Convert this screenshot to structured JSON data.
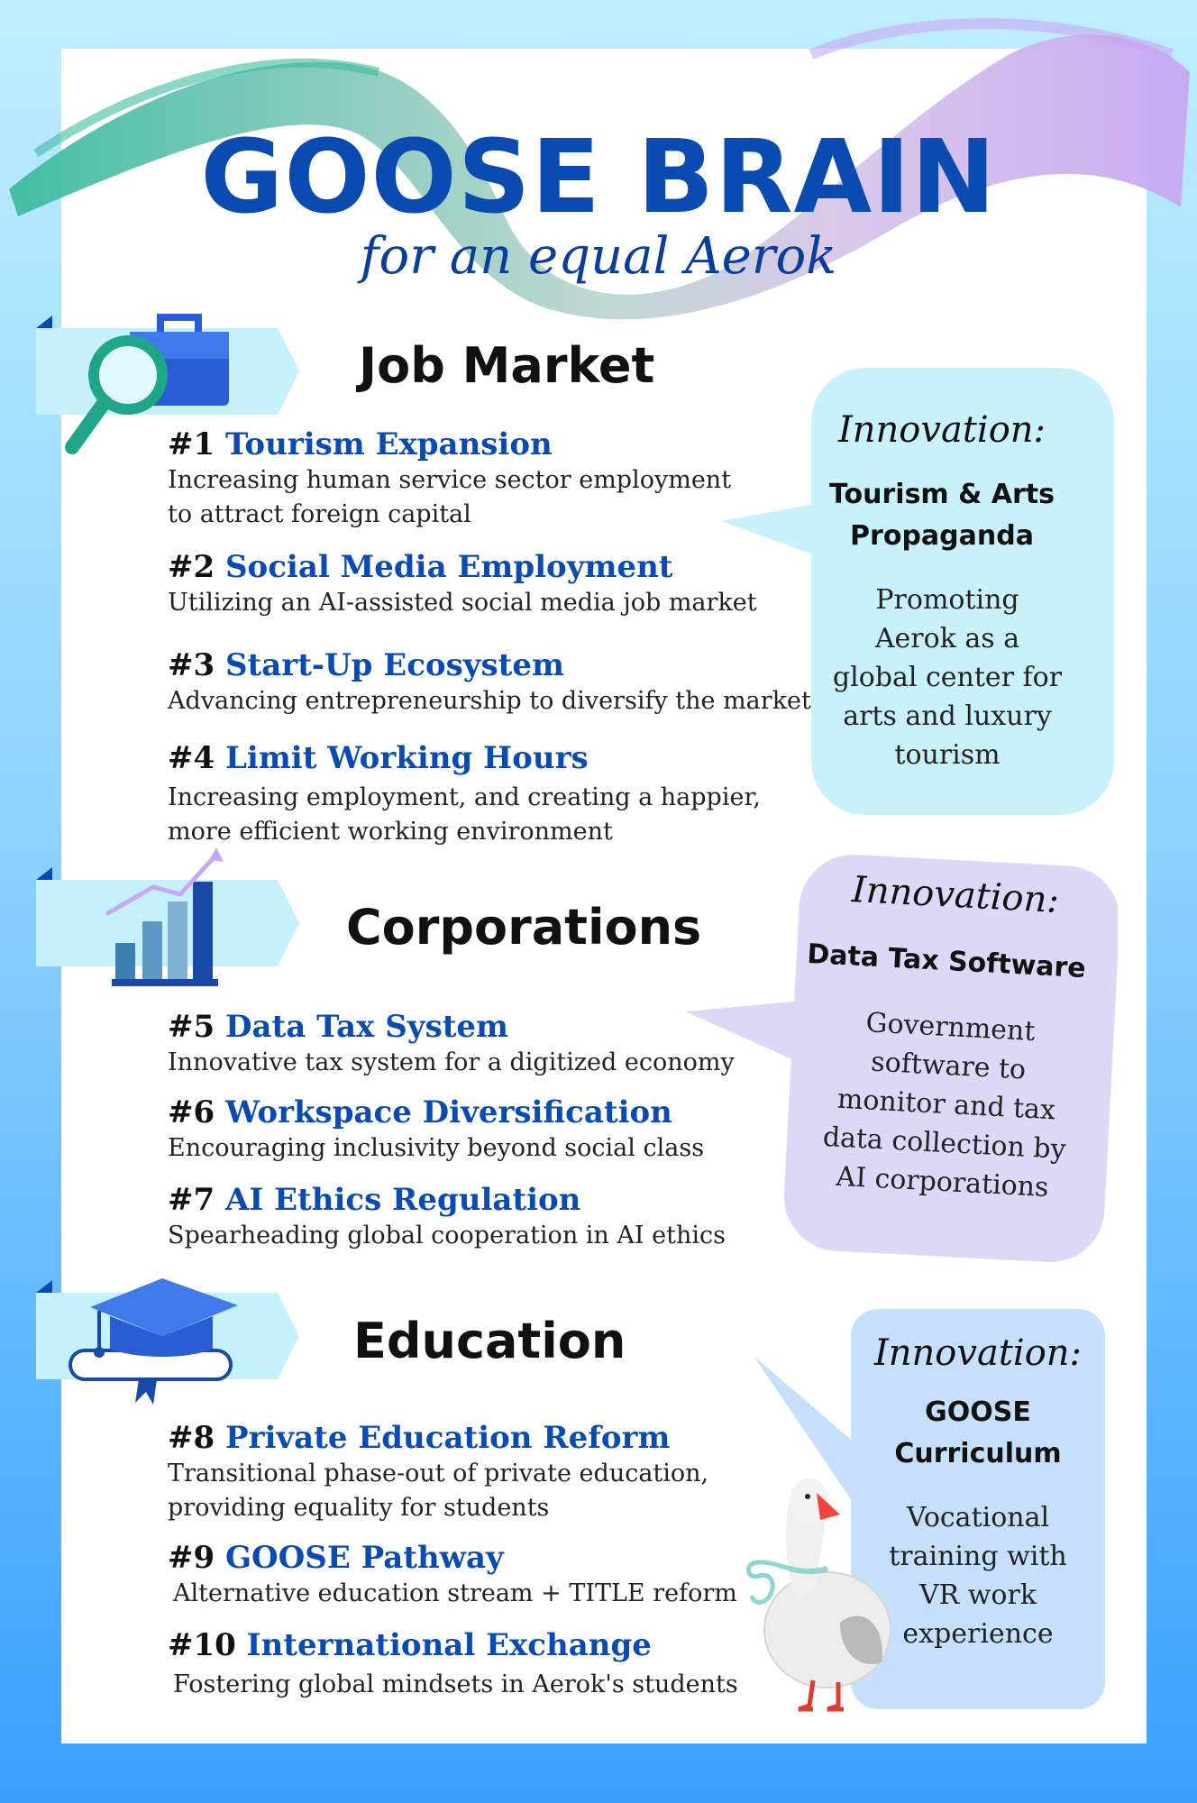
{
  "header": {
    "title": "GOOSE BRAIN",
    "subtitle": "for an equal Aerok"
  },
  "sections": [
    {
      "title": "Job Market",
      "icon": "briefcase-magnifier-icon",
      "items": [
        {
          "num": "#1",
          "name": "Tourism Expansion",
          "desc": [
            "Increasing human service sector employment",
            "to attract foreign capital"
          ]
        },
        {
          "num": "#2",
          "name": "Social Media Employment",
          "desc": [
            "Utilizing an AI-assisted social media job market"
          ]
        },
        {
          "num": "#3",
          "name": "Start-Up Ecosystem",
          "desc": [
            "Advancing entrepreneurship to diversify the market"
          ]
        },
        {
          "num": "#4",
          "name": "Limit Working Hours",
          "desc": [
            "Increasing employment, and creating a happier,",
            "more efficient working environment"
          ]
        }
      ],
      "innovation": {
        "label": "Innovation:",
        "name": [
          "Tourism & Arts",
          "Propaganda"
        ],
        "desc": [
          "Promoting",
          "Aerok as a",
          "global center for",
          "arts and luxury",
          "tourism"
        ],
        "color": "#c9f1fb"
      }
    },
    {
      "title": "Corporations",
      "icon": "bar-chart-icon",
      "items": [
        {
          "num": "#5",
          "name": "Data Tax System",
          "desc": [
            "Innovative tax system for a digitized economy"
          ]
        },
        {
          "num": "#6",
          "name": "Workspace Diversification",
          "desc": [
            "Encouraging inclusivity beyond social class"
          ]
        },
        {
          "num": "#7",
          "name": "AI Ethics Regulation",
          "desc": [
            "Spearheading global cooperation in AI ethics"
          ]
        }
      ],
      "innovation": {
        "label": "Innovation:",
        "name": [
          "Data Tax Software"
        ],
        "desc": [
          "Government",
          "software to",
          "monitor and tax",
          "data collection by",
          "AI corporations"
        ],
        "color": "#ddd8f7"
      }
    },
    {
      "title": "Education",
      "icon": "graduation-cap-icon",
      "items": [
        {
          "num": "#8",
          "name": "Private Education Reform",
          "desc": [
            "Transitional phase-out of private education,",
            "providing equality for students"
          ]
        },
        {
          "num": "#9",
          "name": "GOOSE Pathway",
          "desc": [
            "Alternative education stream + TITLE reform"
          ]
        },
        {
          "num": "#10",
          "name": "International Exchange",
          "desc": [
            "Fostering global mindsets in Aerok's students"
          ]
        }
      ],
      "innovation": {
        "label": "Innovation:",
        "name": [
          "GOOSE",
          "Curriculum"
        ],
        "desc": [
          "Vocational",
          "training with",
          "VR work",
          "experience"
        ],
        "color": "#c6e0fb"
      }
    }
  ],
  "colors": {
    "heading": "#0a4bb2",
    "ribbon": "#c5f1fd",
    "ribbon_corner": "#0a4bb2"
  }
}
